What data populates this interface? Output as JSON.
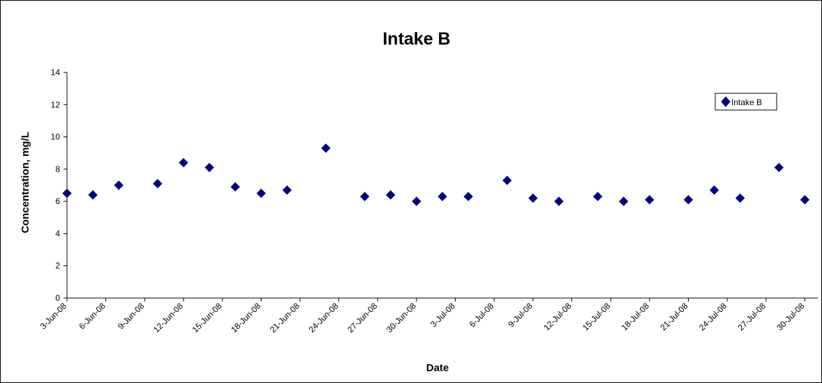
{
  "chart_data": {
    "type": "scatter",
    "title": "Intake B",
    "xlabel": "Date",
    "ylabel": "Concentration, mg/L",
    "ylim": [
      0,
      14
    ],
    "yticks": [
      0,
      2,
      4,
      6,
      8,
      10,
      12,
      14
    ],
    "xlim": [
      "2008-06-03",
      "2008-07-31"
    ],
    "x_tick_labels": [
      "3-Jun-08",
      "6-Jun-08",
      "9-Jun-08",
      "12-Jun-08",
      "15-Jun-08",
      "18-Jun-08",
      "21-Jun-08",
      "24-Jun-08",
      "27-Jun-08",
      "30-Jun-08",
      "3-Jul-08",
      "6-Jul-08",
      "9-Jul-08",
      "12-Jul-08",
      "15-Jul-08",
      "18-Jul-08",
      "21-Jul-08",
      "24-Jul-08",
      "27-Jul-08",
      "30-Jul-08"
    ],
    "grid": false,
    "legend_position": "top-right",
    "series": [
      {
        "name": "Intake B",
        "color": "#000080",
        "marker": "diamond",
        "points": [
          {
            "x": "2008-06-03",
            "y": 6.5
          },
          {
            "x": "2008-06-05",
            "y": 6.4
          },
          {
            "x": "2008-06-07",
            "y": 7.0
          },
          {
            "x": "2008-06-10",
            "y": 7.1
          },
          {
            "x": "2008-06-12",
            "y": 8.4
          },
          {
            "x": "2008-06-14",
            "y": 8.1
          },
          {
            "x": "2008-06-16",
            "y": 6.9
          },
          {
            "x": "2008-06-18",
            "y": 6.5
          },
          {
            "x": "2008-06-20",
            "y": 6.7
          },
          {
            "x": "2008-06-23",
            "y": 9.3
          },
          {
            "x": "2008-06-26",
            "y": 6.3
          },
          {
            "x": "2008-06-28",
            "y": 6.4
          },
          {
            "x": "2008-06-30",
            "y": 6.0
          },
          {
            "x": "2008-07-02",
            "y": 6.3
          },
          {
            "x": "2008-07-04",
            "y": 6.3
          },
          {
            "x": "2008-07-07",
            "y": 7.3
          },
          {
            "x": "2008-07-09",
            "y": 6.2
          },
          {
            "x": "2008-07-11",
            "y": 6.0
          },
          {
            "x": "2008-07-14",
            "y": 6.3
          },
          {
            "x": "2008-07-16",
            "y": 6.0
          },
          {
            "x": "2008-07-18",
            "y": 6.1
          },
          {
            "x": "2008-07-21",
            "y": 6.1
          },
          {
            "x": "2008-07-23",
            "y": 6.7
          },
          {
            "x": "2008-07-25",
            "y": 6.2
          },
          {
            "x": "2008-07-28",
            "y": 8.1
          },
          {
            "x": "2008-07-30",
            "y": 6.1
          }
        ]
      }
    ]
  }
}
